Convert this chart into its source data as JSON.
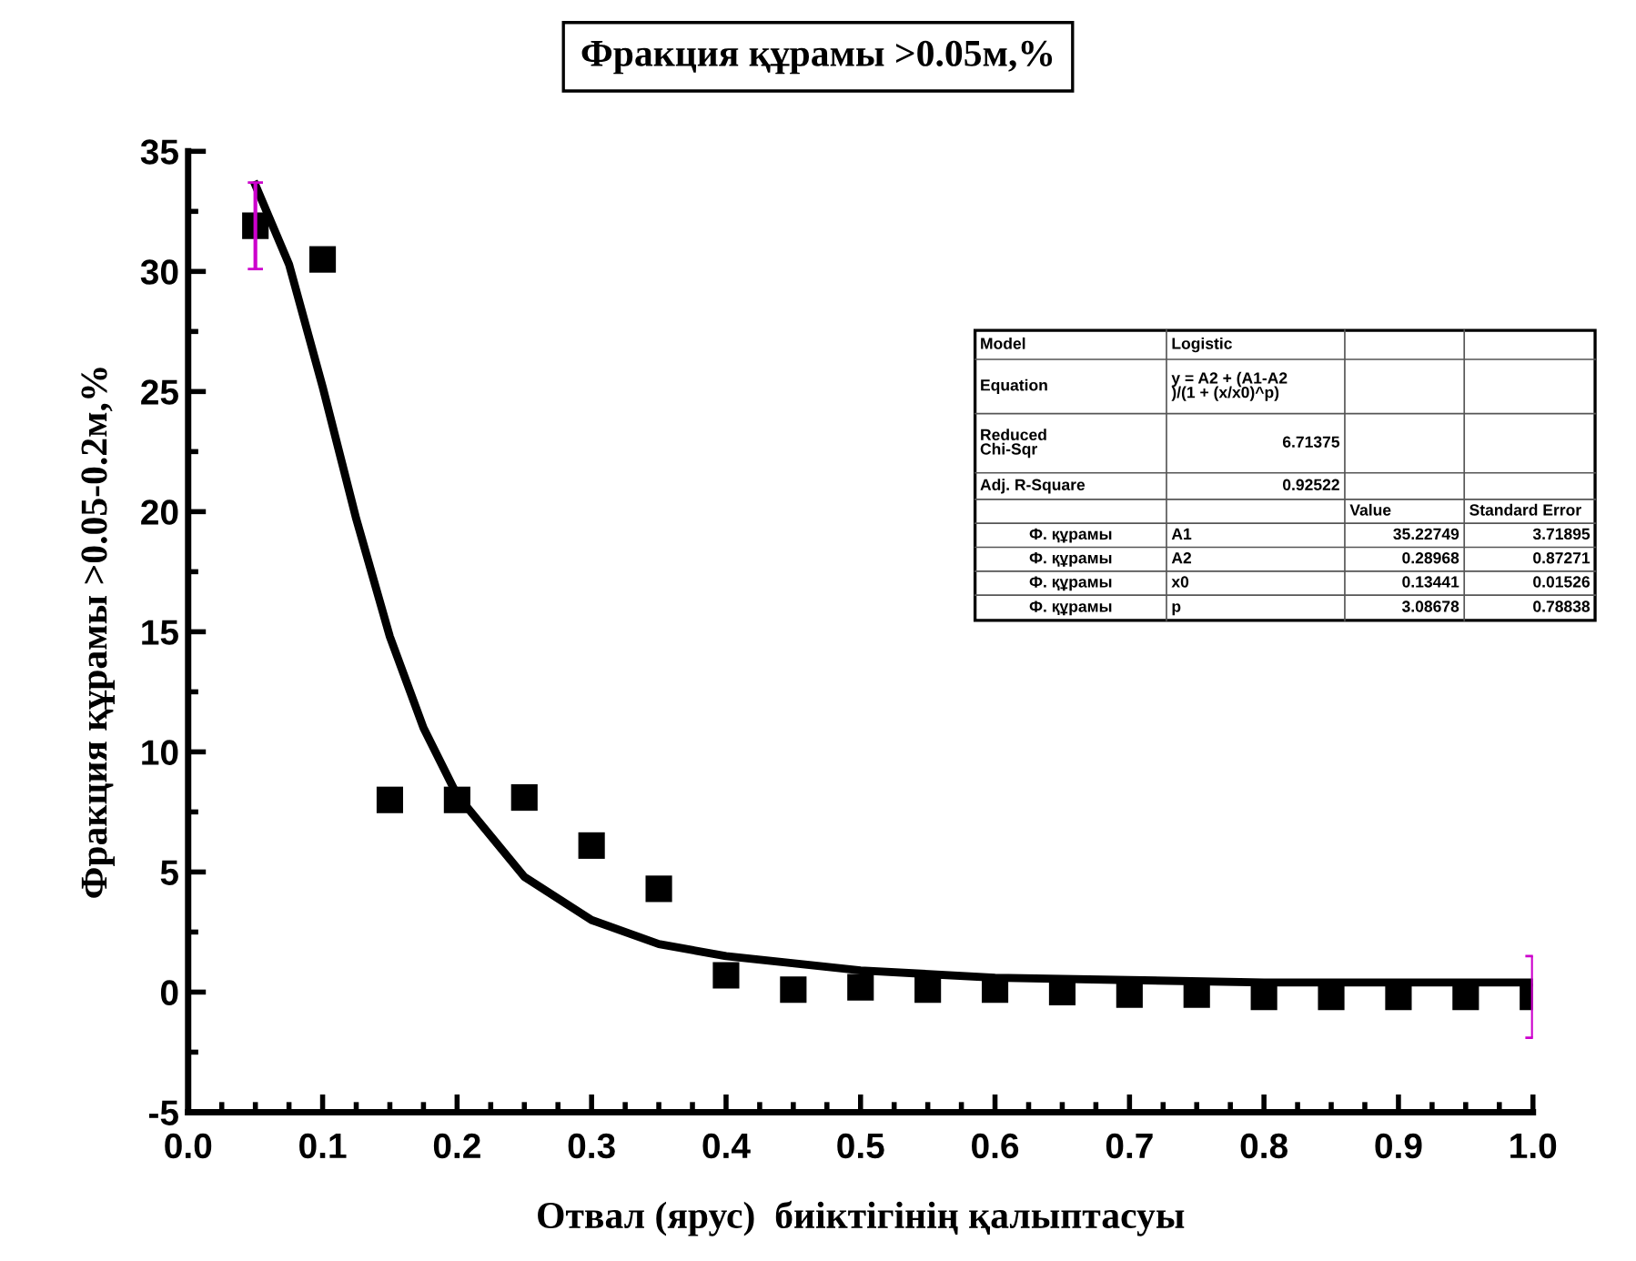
{
  "chart_data": {
    "type": "scatter",
    "title": "Фракция құрамы >0.05м,%",
    "xlabel": "Отвал (ярус)  биіктігінің қалыптасуы",
    "ylabel": "Фракция құрамы >0.05-0.2м,%",
    "xlim": [
      0.0,
      1.0
    ],
    "ylim": [
      -5,
      35
    ],
    "xticks": [
      {
        "value": 0,
        "label": "0.0"
      },
      0.1,
      0.2,
      0.3,
      0.4,
      0.5,
      0.6,
      0.7,
      0.8,
      0.9,
      {
        "value": 1,
        "label": "1.0"
      }
    ],
    "yticks": [
      -5,
      0,
      5,
      10,
      15,
      20,
      25,
      30,
      35
    ],
    "grid": false,
    "legend": false,
    "marker": "square",
    "series": [
      {
        "color": "#000000",
        "x": [
          0.05,
          0.1,
          0.15,
          0.2,
          0.25,
          0.3,
          0.35,
          0.4,
          0.45,
          0.5,
          0.55,
          0.6,
          0.65,
          0.7,
          0.75,
          0.8,
          0.85,
          0.9,
          0.95,
          1.0
        ],
        "values": [
          31.9,
          30.5,
          8.0,
          8.0,
          8.1,
          6.1,
          4.3,
          0.7,
          0.1,
          0.2,
          0.1,
          0.1,
          0.0,
          -0.1,
          -0.1,
          -0.2,
          -0.2,
          -0.2,
          -0.2,
          -0.2
        ],
        "errors": [
          1.8,
          null,
          null,
          null,
          null,
          null,
          null,
          null,
          null,
          null,
          null,
          null,
          null,
          null,
          null,
          null,
          null,
          null,
          null,
          1.7
        ]
      },
      {
        "type": "line",
        "color": "#000000",
        "marker": "none",
        "line_style": "solid",
        "x": [
          0.05,
          0.075,
          0.1,
          0.125,
          0.15,
          0.175,
          0.2,
          0.25,
          0.3,
          0.35,
          0.4,
          0.5,
          0.6,
          0.7,
          0.8,
          0.9,
          1.0
        ],
        "values": [
          33.6,
          30.3,
          25.2,
          19.7,
          14.8,
          11.0,
          8.2,
          4.8,
          3.0,
          2.0,
          1.5,
          0.9,
          0.6,
          0.5,
          0.4,
          0.4,
          0.4
        ]
      }
    ],
    "annotations": [
      "Model",
      "Logistic",
      "Equation",
      "y = A2 + (A1-A2\n)/(1 + (x/x0)^p)",
      "Reduced\nChi-Sqr",
      "6.71375",
      "Adj. R-Square",
      "0.92522",
      "Value",
      "Standard Error",
      "Ф. құрамы",
      "A1",
      "35.22749",
      "3.71895",
      "Ф. құрамы",
      "A2",
      "0.28968",
      "0.87271",
      "Ф. құрамы",
      "x0",
      "0.13441",
      "0.01526",
      "Ф. құрамы",
      "p",
      "3.08678",
      "0.78838"
    ]
  }
}
